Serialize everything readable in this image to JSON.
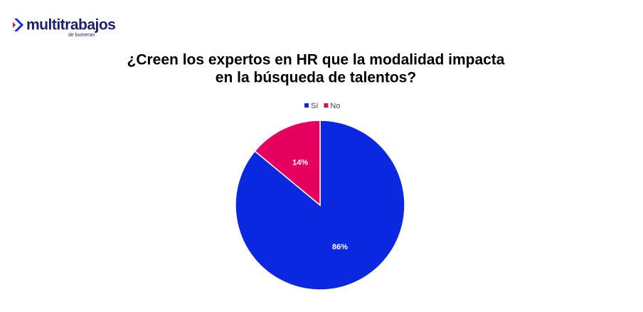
{
  "logo": {
    "name": "multitrabajos",
    "tagline": "de bumeran"
  },
  "chart_data": {
    "type": "pie",
    "title": [
      "¿Creen los expertos en HR que la modalidad impacta",
      "en la búsqueda de talentos?"
    ],
    "categories": [
      "Sí",
      "No"
    ],
    "values": [
      86,
      14
    ],
    "value_labels": [
      "86%",
      "14%"
    ],
    "colors": [
      "#0a28e0",
      "#e5005f"
    ],
    "legend": "top"
  }
}
